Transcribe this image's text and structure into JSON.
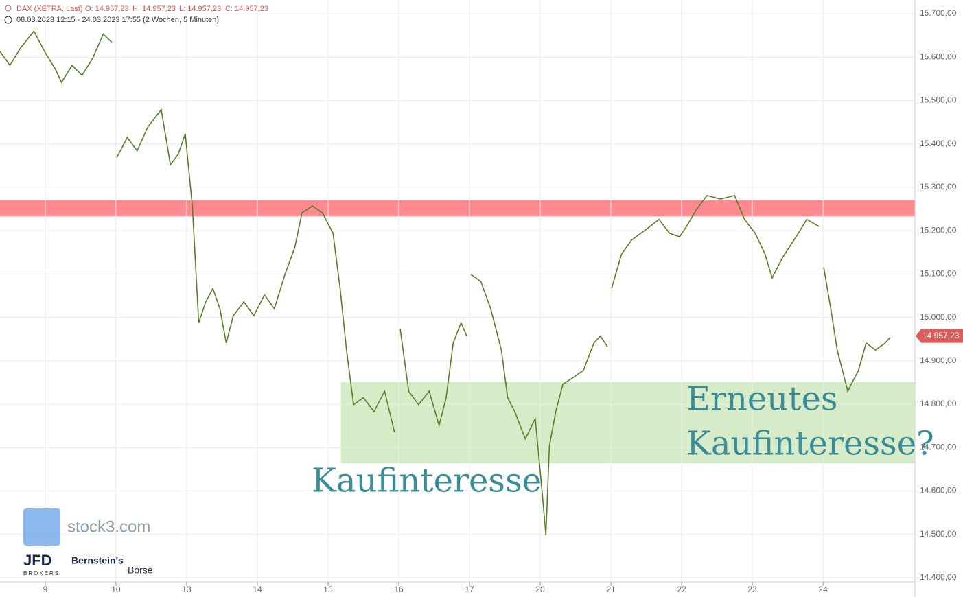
{
  "chart_data": {
    "type": "line",
    "header": {
      "instrument": "DAX (XETRA, Last)",
      "open": "O: 14.957,23",
      "high": "H: 14.957,23",
      "low": "L: 14.957,23",
      "close": "C: 14.957,23",
      "period": "08.03.2023 12:15 - 24.03.2023 17:55",
      "interval": "(2 Wochen, 5 Minuten)"
    },
    "xlim": [
      -0.64,
      12.3
    ],
    "ylim": [
      14400,
      15700
    ],
    "xticks": [
      {
        "value": 0,
        "label": "9"
      },
      {
        "value": 1,
        "label": "10"
      },
      {
        "value": 2,
        "label": "13"
      },
      {
        "value": 3,
        "label": "14"
      },
      {
        "value": 4,
        "label": "15"
      },
      {
        "value": 5,
        "label": "16"
      },
      {
        "value": 6,
        "label": "17"
      },
      {
        "value": 7,
        "label": "20"
      },
      {
        "value": 8,
        "label": "21"
      },
      {
        "value": 9,
        "label": "22"
      },
      {
        "value": 10,
        "label": "23"
      },
      {
        "value": 11,
        "label": "24"
      }
    ],
    "yticks": [
      {
        "value": 14400,
        "label": "14.400,00"
      },
      {
        "value": 14500,
        "label": "14.500,00"
      },
      {
        "value": 14600,
        "label": "14.600,00"
      },
      {
        "value": 14700,
        "label": "14.700,00"
      },
      {
        "value": 14800,
        "label": "14.800,00"
      },
      {
        "value": 14900,
        "label": "14.900,00"
      },
      {
        "value": 15000,
        "label": "15.000,00"
      },
      {
        "value": 15100,
        "label": "15.100,00"
      },
      {
        "value": 15200,
        "label": "15.200,00"
      },
      {
        "value": 15300,
        "label": "15.300,00"
      },
      {
        "value": 15400,
        "label": "15.400,00"
      },
      {
        "value": 15500,
        "label": "15.500,00"
      },
      {
        "value": 15600,
        "label": "15.600,00"
      },
      {
        "value": 15700,
        "label": "15.700,00"
      }
    ],
    "grid": true,
    "series": [
      {
        "name": "DAX",
        "color": "#5a7d2a",
        "x": [
          -0.64,
          -0.5,
          -0.35,
          -0.16,
          -0.01,
          0.14,
          0.23,
          0.38,
          0.52,
          0.67,
          0.82,
          0.94,
          0.97,
          1.01,
          1.16,
          1.3,
          1.45,
          1.64,
          1.77,
          1.88,
          1.98,
          2.08,
          2.17,
          2.27,
          2.37,
          2.47,
          2.56,
          2.66,
          2.81,
          2.95,
          3.1,
          3.24,
          3.39,
          3.53,
          3.63,
          3.78,
          3.92,
          4.07,
          4.17,
          4.26,
          4.36,
          4.5,
          4.65,
          4.8,
          4.94,
          4.98,
          5.02,
          5.14,
          5.28,
          5.43,
          5.57,
          5.67,
          5.77,
          5.88,
          5.96,
          5.99,
          6.02,
          6.16,
          6.3,
          6.45,
          6.54,
          6.64,
          6.79,
          6.93,
          7.03,
          7.08,
          7.13,
          7.22,
          7.32,
          7.47,
          7.61,
          7.76,
          7.85,
          7.95,
          7.98,
          8.01,
          8.15,
          8.29,
          8.49,
          8.68,
          8.83,
          8.97,
          9.07,
          9.21,
          9.36,
          9.55,
          9.75,
          9.89,
          10.04,
          10.18,
          10.28,
          10.43,
          10.62,
          10.77,
          10.94,
          10.97,
          11.01,
          11.11,
          11.2,
          11.35,
          11.5,
          11.61,
          11.74,
          11.88,
          11.95
        ],
        "values": [
          15613,
          15581,
          15621,
          15660,
          15613,
          15573,
          15542,
          15581,
          15558,
          15597,
          15653,
          15634,
          null,
          15368,
          15415,
          15384,
          15439,
          15479,
          15352,
          15376,
          15423,
          15257,
          14988,
          15036,
          15067,
          15020,
          14941,
          15004,
          15036,
          15004,
          15052,
          15020,
          15099,
          15162,
          15241,
          15257,
          15241,
          15194,
          15067,
          14925,
          14799,
          14815,
          14783,
          14830,
          14735,
          null,
          14973,
          14830,
          14799,
          14830,
          14751,
          14815,
          14941,
          14988,
          14957,
          null,
          15099,
          15083,
          15020,
          14925,
          14815,
          14783,
          14720,
          14767,
          14593,
          14498,
          14704,
          14783,
          14846,
          14862,
          14878,
          14941,
          14957,
          14933,
          null,
          15067,
          15146,
          15178,
          15202,
          15226,
          15194,
          15186,
          15210,
          15249,
          15281,
          15273,
          15281,
          15226,
          15194,
          15146,
          15091,
          15139,
          15186,
          15226,
          15210,
          null,
          15115,
          15020,
          14925,
          14830,
          14878,
          14941,
          14925,
          14941,
          14954
        ]
      }
    ],
    "last_price": {
      "value": 14957.23,
      "label": "14.957,23",
      "color": "#e05a5a"
    },
    "zones": [
      {
        "ylim": [
          15233,
          15270
        ],
        "color": "#ff8a8f"
      },
      {
        "xlim": [
          4.18,
          12.3
        ],
        "ylim": [
          14664,
          14851
        ],
        "color": "#d6ecc8"
      }
    ],
    "annotations": [
      {
        "lines": [
          "Kaufinteresse"
        ]
      },
      {
        "lines": [
          "Erneutes",
          "Kaufinteresse?"
        ]
      }
    ],
    "branding": {
      "stock3": "stock3.com",
      "jfd": "JFD",
      "jfd_sub": "BROKERS",
      "bernstein": "Bernstein's",
      "boerse": "Börse"
    }
  }
}
